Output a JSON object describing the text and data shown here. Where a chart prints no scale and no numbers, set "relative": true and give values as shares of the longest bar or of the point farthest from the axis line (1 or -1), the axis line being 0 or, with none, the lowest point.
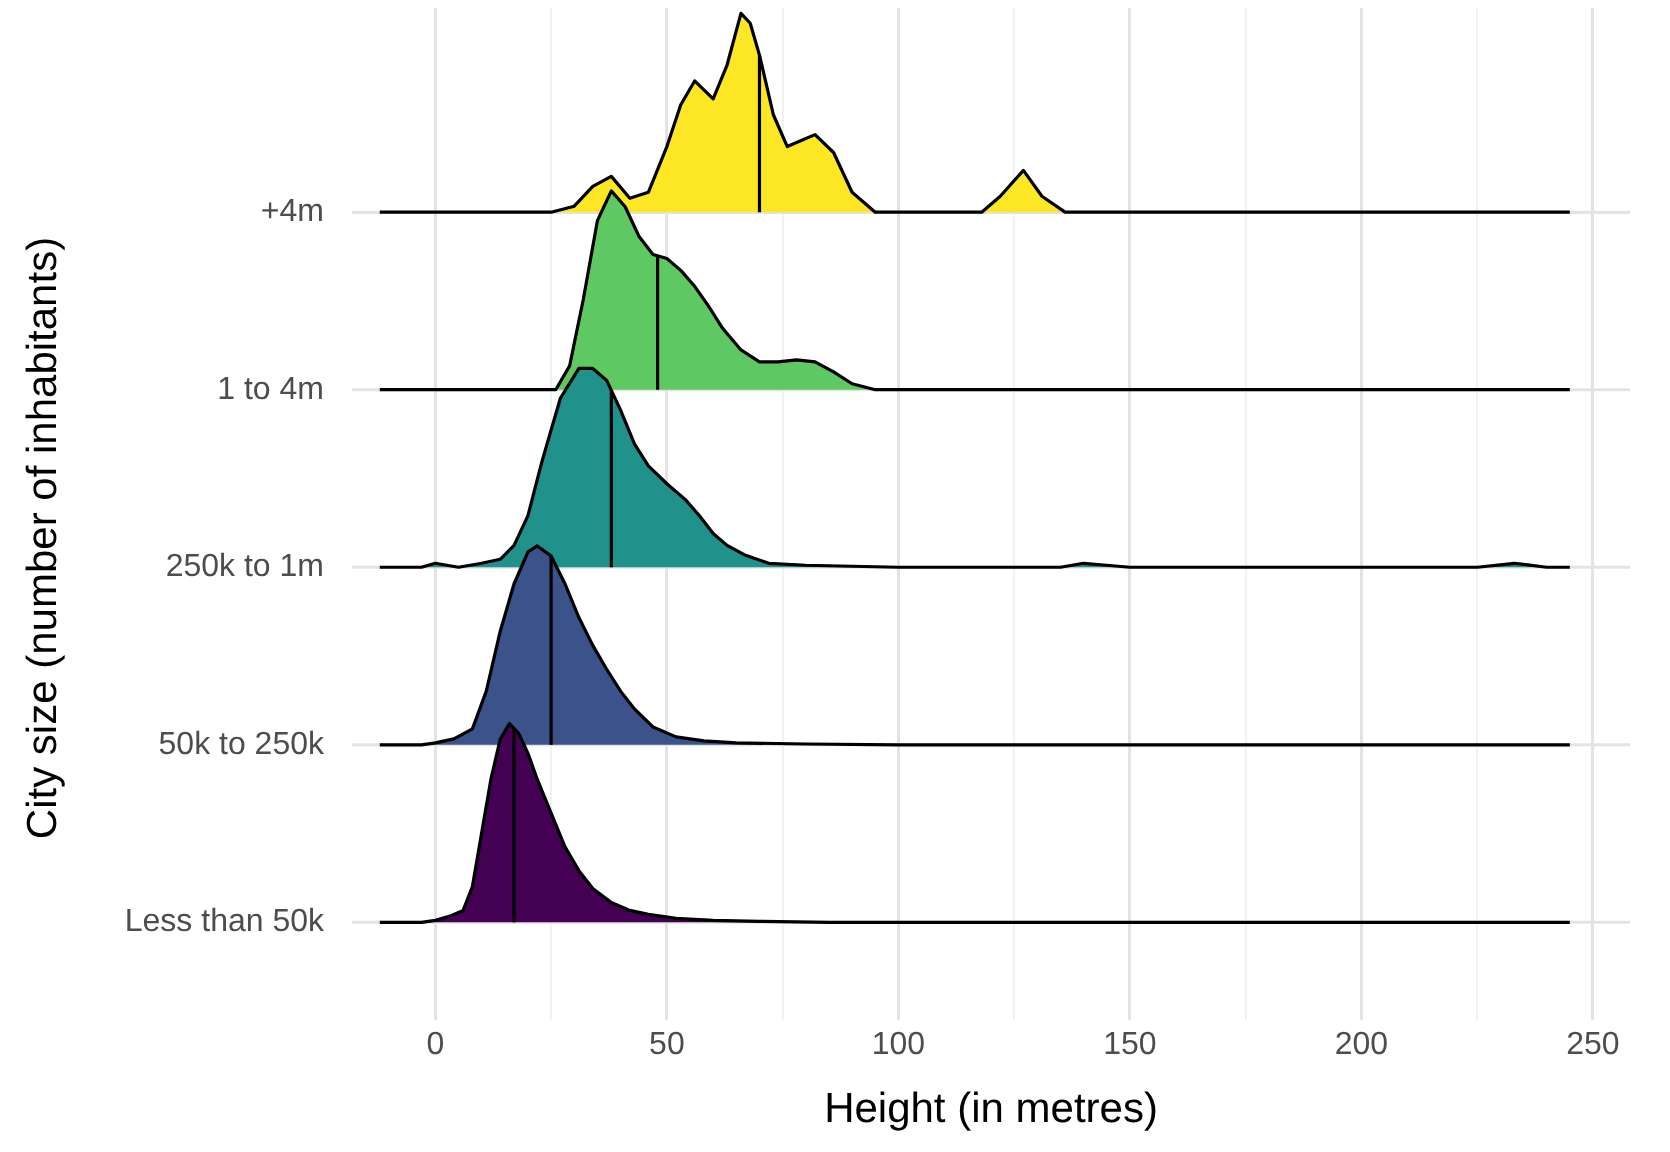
{
  "chart_data": [
    {
      "type": "area",
      "relative": true,
      "xlim": [
        -18,
        258
      ],
      "xticks": [
        0,
        {
          "value": 25,
          "label": null
        },
        50,
        {
          "value": 75,
          "label": null
        },
        100,
        {
          "value": 125,
          "label": null
        },
        150,
        {
          "value": 175,
          "label": null
        },
        200,
        {
          "value": 225,
          "label": null
        },
        250
      ],
      "tick_labels": "x",
      "grid": true,
      "ref_lines": [
        {
          "axis": "x",
          "value": 70,
          "color": "#000000"
        }
      ],
      "series": [
        {
          "name": "+4m",
          "color": "#fde725",
          "x": [
            -12,
            25,
            30,
            34,
            38,
            42,
            46,
            50,
            53,
            56,
            60,
            63,
            66,
            68,
            70,
            73,
            76,
            79,
            82,
            86,
            90,
            95,
            118,
            122,
            127,
            131,
            136,
            245
          ],
          "values": [
            0,
            0,
            0.03,
            0.13,
            0.18,
            0.07,
            0.1,
            0.33,
            0.54,
            0.66,
            0.57,
            0.74,
            1,
            0.95,
            0.79,
            0.49,
            0.33,
            0.36,
            0.39,
            0.3,
            0.1,
            0,
            0,
            0.08,
            0.21,
            0.08,
            0,
            0
          ]
        }
      ]
    },
    {
      "type": "area",
      "relative": true,
      "xlim": [
        -18,
        258
      ],
      "tick_labels": false,
      "ref_lines": [
        {
          "axis": "x",
          "value": 48,
          "color": "#000000"
        }
      ],
      "series": [
        {
          "name": "1 to 4m",
          "color": "#5ec962",
          "x": [
            -12,
            26,
            29,
            32,
            35,
            38,
            41,
            44,
            47,
            50,
            53,
            56,
            59,
            62,
            66,
            70,
            74,
            78,
            82,
            86,
            90,
            95,
            245
          ],
          "values": [
            0,
            0,
            0.12,
            0.46,
            0.85,
            1,
            0.92,
            0.77,
            0.68,
            0.66,
            0.6,
            0.52,
            0.42,
            0.31,
            0.2,
            0.14,
            0.14,
            0.15,
            0.14,
            0.09,
            0.03,
            0,
            0
          ]
        }
      ]
    },
    {
      "type": "area",
      "relative": true,
      "xlim": [
        -18,
        258
      ],
      "tick_labels": false,
      "ref_lines": [
        {
          "axis": "x",
          "value": 38,
          "color": "#000000"
        }
      ],
      "series": [
        {
          "name": "250k to 1m",
          "color": "#21918c",
          "x": [
            -12,
            -3,
            0,
            5,
            10,
            14,
            17,
            20,
            23,
            27,
            31,
            34,
            37,
            40,
            43,
            46,
            50,
            54,
            57,
            60,
            63,
            67,
            72,
            80,
            100,
            135,
            140,
            145,
            150,
            225,
            233,
            240,
            245
          ],
          "values": [
            0,
            0,
            0.02,
            0,
            0.02,
            0.04,
            0.11,
            0.26,
            0.53,
            0.85,
            1,
            1,
            0.94,
            0.79,
            0.62,
            0.51,
            0.42,
            0.34,
            0.26,
            0.17,
            0.11,
            0.06,
            0.02,
            0.01,
            0,
            0,
            0.02,
            0.01,
            0,
            0,
            0.02,
            0,
            0
          ]
        }
      ]
    },
    {
      "type": "area",
      "relative": true,
      "xlim": [
        -18,
        258
      ],
      "tick_labels": false,
      "ref_lines": [
        {
          "axis": "x",
          "value": 25,
          "color": "#000000"
        }
      ],
      "series": [
        {
          "name": "50k to 250k",
          "color": "#3b528b",
          "x": [
            -12,
            -3,
            0,
            4,
            8,
            11,
            14,
            17,
            20,
            22,
            25,
            28,
            31,
            34,
            37,
            40,
            43,
            47,
            52,
            58,
            65,
            80,
            100,
            245
          ],
          "values": [
            0,
            0,
            0.01,
            0.03,
            0.08,
            0.27,
            0.57,
            0.81,
            0.97,
            1,
            0.95,
            0.81,
            0.64,
            0.5,
            0.38,
            0.27,
            0.18,
            0.09,
            0.04,
            0.02,
            0.01,
            0.004,
            0,
            0
          ]
        }
      ]
    },
    {
      "type": "area",
      "relative": true,
      "xlabel": "Height (in metres)",
      "ylabel": "City size (number of inhabitants)",
      "xlim": [
        -18,
        258
      ],
      "tick_labels": false,
      "ref_lines": [
        {
          "axis": "x",
          "value": 17,
          "color": "#000000"
        }
      ],
      "series": [
        {
          "name": "Less than 50k",
          "color": "#440154",
          "x": [
            -12,
            -3,
            0,
            3,
            6,
            8,
            10,
            12,
            14,
            16,
            18,
            20,
            22,
            25,
            28,
            31,
            34,
            38,
            42,
            46,
            52,
            60,
            70,
            85,
            245
          ],
          "values": [
            0,
            0,
            0.01,
            0.03,
            0.06,
            0.18,
            0.45,
            0.72,
            0.92,
            1,
            0.95,
            0.85,
            0.72,
            0.55,
            0.38,
            0.26,
            0.17,
            0.1,
            0.06,
            0.04,
            0.02,
            0.01,
            0.005,
            0,
            0
          ]
        }
      ]
    }
  ]
}
